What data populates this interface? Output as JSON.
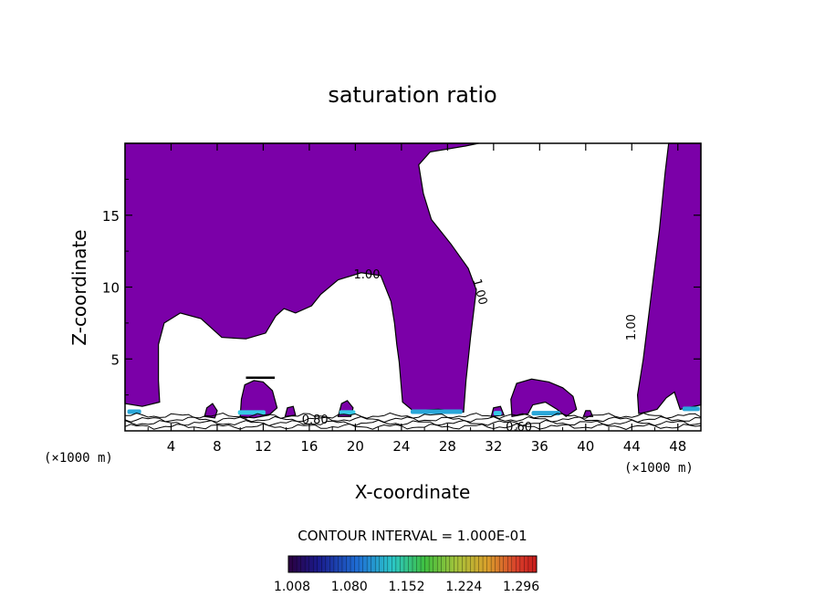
{
  "chart_data": {
    "type": "contour",
    "title": "saturation ratio",
    "xlabel": "X-coordinate",
    "ylabel": "Z-coordinate",
    "x_unit_left": "(×1000 m)",
    "x_unit_right": "(×1000 m)",
    "xlim": [
      0,
      50
    ],
    "ylim": [
      0,
      20
    ],
    "x_ticks": [
      4,
      8,
      12,
      16,
      20,
      24,
      28,
      32,
      36,
      40,
      44,
      48
    ],
    "y_ticks": [
      5,
      10,
      15
    ],
    "contour_interval_text": "CONTOUR INTERVAL = 1.000E-01",
    "contour_labels": [
      {
        "text": "1.00",
        "x": 21.0,
        "y": 10.6
      },
      {
        "text": "1.00",
        "x": 30.5,
        "y": 9.6
      },
      {
        "text": "1.00",
        "x": 44.3,
        "y": 7.2
      },
      {
        "text": "0.80",
        "x": 16.5,
        "y": 0.5
      },
      {
        "text": "0.60",
        "x": 34.2,
        "y": 0.0
      }
    ],
    "colorbar": {
      "tick_labels": [
        "1.008",
        "1.080",
        "1.152",
        "1.224",
        "1.296"
      ],
      "min": 1.008,
      "max": 1.32
    },
    "fill_color": "#7b00a8",
    "outline_color": "#000000",
    "regions": [
      {
        "name": "left-upper-saturated",
        "points": [
          [
            0,
            20
          ],
          [
            30.7,
            20
          ],
          [
            29.5,
            19.8
          ],
          [
            26.5,
            19.4
          ],
          [
            25.5,
            18.5
          ],
          [
            25.9,
            16.5
          ],
          [
            26.6,
            14.7
          ],
          [
            28.3,
            13.0
          ],
          [
            29.8,
            11.3
          ],
          [
            30.5,
            9.8
          ],
          [
            30.0,
            6.5
          ],
          [
            29.6,
            3.5
          ],
          [
            29.4,
            1.3
          ],
          [
            27.2,
            1.5
          ],
          [
            25.0,
            1.4
          ],
          [
            24.1,
            2.0
          ],
          [
            23.8,
            4.8
          ],
          [
            23.6,
            6.0
          ],
          [
            23.4,
            7.5
          ],
          [
            23.1,
            9.0
          ],
          [
            22.2,
            10.8
          ],
          [
            20.5,
            11.0
          ],
          [
            18.5,
            10.5
          ],
          [
            17.0,
            9.5
          ],
          [
            16.2,
            8.7
          ],
          [
            14.8,
            8.2
          ],
          [
            13.8,
            8.5
          ],
          [
            13.1,
            8.0
          ],
          [
            12.2,
            6.8
          ],
          [
            10.5,
            6.4
          ],
          [
            8.4,
            6.5
          ],
          [
            6.6,
            7.8
          ],
          [
            4.8,
            8.2
          ],
          [
            3.4,
            7.5
          ],
          [
            2.9,
            6.0
          ],
          [
            2.9,
            3.5
          ],
          [
            3.0,
            2.0
          ],
          [
            1.5,
            1.7
          ],
          [
            0,
            1.9
          ]
        ]
      },
      {
        "name": "right-saturated",
        "points": [
          [
            47.2,
            20
          ],
          [
            50,
            20
          ],
          [
            50,
            1.8
          ],
          [
            48.2,
            1.5
          ],
          [
            47.7,
            2.7
          ],
          [
            47.0,
            2.3
          ],
          [
            46.2,
            1.5
          ],
          [
            45.3,
            1.3
          ],
          [
            44.6,
            1.2
          ],
          [
            44.5,
            2.5
          ],
          [
            45.0,
            5.0
          ],
          [
            45.7,
            9.5
          ],
          [
            46.4,
            14.0
          ],
          [
            46.9,
            18.0
          ]
        ]
      },
      {
        "name": "blob-x11",
        "points": [
          [
            10.0,
            1.0
          ],
          [
            10.1,
            2.2
          ],
          [
            10.4,
            3.2
          ],
          [
            11.2,
            3.5
          ],
          [
            12.0,
            3.4
          ],
          [
            12.8,
            2.8
          ],
          [
            13.2,
            1.6
          ],
          [
            12.5,
            1.1
          ],
          [
            11.2,
            0.9
          ]
        ]
      },
      {
        "name": "blob-x35",
        "points": [
          [
            33.6,
            1.0
          ],
          [
            33.5,
            2.2
          ],
          [
            34.0,
            3.3
          ],
          [
            35.3,
            3.6
          ],
          [
            36.8,
            3.4
          ],
          [
            38.0,
            3.0
          ],
          [
            38.9,
            2.4
          ],
          [
            39.2,
            1.5
          ],
          [
            38.3,
            1.0
          ],
          [
            37.5,
            1.5
          ],
          [
            36.5,
            2.0
          ],
          [
            35.4,
            1.8
          ],
          [
            35.0,
            1.2
          ]
        ]
      },
      {
        "name": "blob-x7",
        "points": [
          [
            6.9,
            1.0
          ],
          [
            7.1,
            1.6
          ],
          [
            7.6,
            1.9
          ],
          [
            8.0,
            1.4
          ],
          [
            7.8,
            0.9
          ]
        ]
      },
      {
        "name": "blob-x15",
        "points": [
          [
            13.9,
            1.0
          ],
          [
            14.1,
            1.6
          ],
          [
            14.6,
            1.7
          ],
          [
            14.8,
            1.1
          ]
        ]
      },
      {
        "name": "blob-x19",
        "points": [
          [
            18.5,
            1.0
          ],
          [
            18.8,
            1.9
          ],
          [
            19.3,
            2.1
          ],
          [
            19.8,
            1.6
          ],
          [
            19.6,
            1.0
          ]
        ]
      },
      {
        "name": "blob-x32",
        "points": [
          [
            31.8,
            1.0
          ],
          [
            32.0,
            1.6
          ],
          [
            32.6,
            1.7
          ],
          [
            32.9,
            1.1
          ]
        ]
      },
      {
        "name": "blob-x40",
        "points": [
          [
            39.8,
            1.0
          ],
          [
            40.0,
            1.4
          ],
          [
            40.4,
            1.4
          ],
          [
            40.6,
            1.0
          ]
        ]
      }
    ],
    "ground_lines_y": [
      0.3,
      0.55,
      0.8,
      1.05
    ],
    "cap_lines": [
      {
        "x0": 10.5,
        "x1": 13.0,
        "y": 3.7
      }
    ],
    "highlight_patches": [
      {
        "x0": 0.2,
        "x1": 1.4,
        "y": 1.3,
        "color": "#2aa7d9"
      },
      {
        "x0": 9.8,
        "x1": 12.2,
        "y": 1.25,
        "color": "#36c9e6"
      },
      {
        "x0": 18.6,
        "x1": 20.0,
        "y": 1.25,
        "color": "#36c9e6"
      },
      {
        "x0": 24.8,
        "x1": 29.3,
        "y": 1.3,
        "color": "#2aa7d9"
      },
      {
        "x0": 32.0,
        "x1": 32.7,
        "y": 1.2,
        "color": "#36c9e6"
      },
      {
        "x0": 35.3,
        "x1": 37.8,
        "y": 1.2,
        "color": "#2aa7d9"
      },
      {
        "x0": 48.4,
        "x1": 49.9,
        "y": 1.5,
        "color": "#2aa7d9"
      }
    ]
  }
}
